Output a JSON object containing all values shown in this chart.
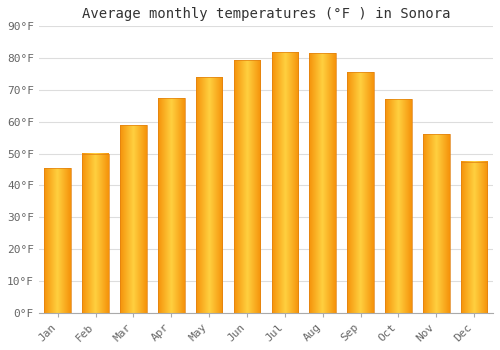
{
  "months": [
    "Jan",
    "Feb",
    "Mar",
    "Apr",
    "May",
    "Jun",
    "Jul",
    "Aug",
    "Sep",
    "Oct",
    "Nov",
    "Dec"
  ],
  "values": [
    45.5,
    50.0,
    59.0,
    67.5,
    74.0,
    79.5,
    82.0,
    81.5,
    75.5,
    67.0,
    56.0,
    47.5
  ],
  "bar_color_center": "#FFD040",
  "bar_color_edge": "#F5920A",
  "background_color": "#FFFFFF",
  "grid_color": "#DDDDDD",
  "title": "Average monthly temperatures (°F ) in Sonora",
  "title_fontsize": 10,
  "tick_fontsize": 8,
  "ylim": [
    0,
    90
  ],
  "yticks": [
    0,
    10,
    20,
    30,
    40,
    50,
    60,
    70,
    80,
    90
  ],
  "ytick_labels": [
    "0°F",
    "10°F",
    "20°F",
    "30°F",
    "40°F",
    "50°F",
    "60°F",
    "70°F",
    "80°F",
    "90°F"
  ]
}
